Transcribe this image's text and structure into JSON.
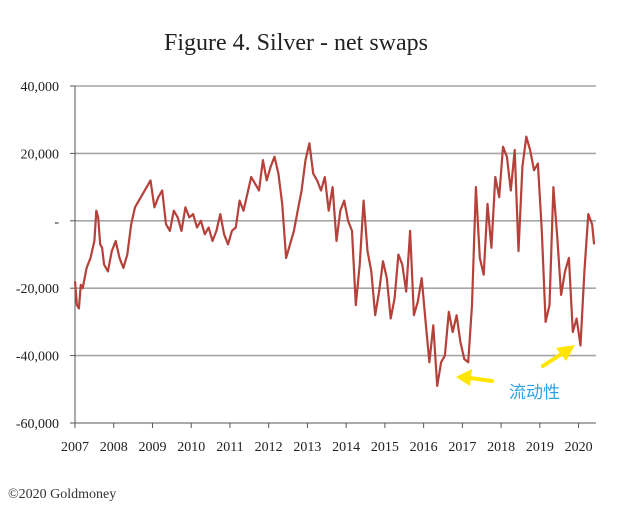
{
  "chart_data": {
    "type": "line",
    "title": "Figure 4. Silver - net swaps",
    "xlabel": "",
    "ylabel": "",
    "ylim": [
      -60000,
      40000
    ],
    "xlim": [
      2007.0,
      2020.45
    ],
    "grid": "horizontal",
    "y_ticks": [
      {
        "value": 40000,
        "label": "40,000"
      },
      {
        "value": 20000,
        "label": "20,000"
      },
      {
        "value": 0,
        "label": "-"
      },
      {
        "value": -20000,
        "label": "-20,000"
      },
      {
        "value": -40000,
        "label": "-40,000"
      },
      {
        "value": -60000,
        "label": "-60,000"
      }
    ],
    "x_ticks": [
      {
        "value": 2007,
        "label": "2007"
      },
      {
        "value": 2008,
        "label": "2008"
      },
      {
        "value": 2009,
        "label": "2009"
      },
      {
        "value": 2010,
        "label": "2010"
      },
      {
        "value": 2011,
        "label": "2011"
      },
      {
        "value": 2012,
        "label": "2012"
      },
      {
        "value": 2013,
        "label": "2013"
      },
      {
        "value": 2014,
        "label": "2014"
      },
      {
        "value": 2015,
        "label": "2015"
      },
      {
        "value": 2016,
        "label": "2016"
      },
      {
        "value": 2017,
        "label": "2017"
      },
      {
        "value": 2018,
        "label": "2018"
      },
      {
        "value": 2019,
        "label": "2019"
      },
      {
        "value": 2020,
        "label": "2020"
      }
    ],
    "series": [
      {
        "color": "#b5413a",
        "x": [
          2007.0,
          2007.05,
          2007.1,
          2007.15,
          2007.2,
          2007.3,
          2007.4,
          2007.5,
          2007.55,
          2007.6,
          2007.65,
          2007.7,
          2007.75,
          2007.85,
          2007.95,
          2008.05,
          2008.15,
          2008.25,
          2008.35,
          2008.45,
          2008.55,
          2008.65,
          2008.75,
          2008.85,
          2008.95,
          2009.05,
          2009.15,
          2009.25,
          2009.35,
          2009.45,
          2009.55,
          2009.65,
          2009.75,
          2009.85,
          2009.95,
          2010.05,
          2010.15,
          2010.25,
          2010.35,
          2010.45,
          2010.55,
          2010.65,
          2010.75,
          2010.85,
          2010.95,
          2011.05,
          2011.15,
          2011.25,
          2011.35,
          2011.45,
          2011.55,
          2011.65,
          2011.75,
          2011.85,
          2011.95,
          2012.05,
          2012.15,
          2012.25,
          2012.35,
          2012.45,
          2012.55,
          2012.65,
          2012.75,
          2012.85,
          2012.95,
          2013.05,
          2013.15,
          2013.25,
          2013.35,
          2013.45,
          2013.55,
          2013.65,
          2013.75,
          2013.85,
          2013.95,
          2014.05,
          2014.15,
          2014.25,
          2014.35,
          2014.45,
          2014.55,
          2014.65,
          2014.75,
          2014.85,
          2014.95,
          2015.05,
          2015.15,
          2015.25,
          2015.35,
          2015.45,
          2015.55,
          2015.65,
          2015.75,
          2015.85,
          2015.95,
          2016.05,
          2016.15,
          2016.25,
          2016.35,
          2016.45,
          2016.55,
          2016.65,
          2016.75,
          2016.85,
          2016.95,
          2017.05,
          2017.15,
          2017.25,
          2017.35,
          2017.45,
          2017.55,
          2017.65,
          2017.75,
          2017.85,
          2017.95,
          2018.05,
          2018.15,
          2018.25,
          2018.35,
          2018.45,
          2018.55,
          2018.65,
          2018.75,
          2018.85,
          2018.95,
          2019.05,
          2019.15,
          2019.25,
          2019.35,
          2019.45,
          2019.55,
          2019.65,
          2019.75,
          2019.85,
          2019.95,
          2020.05,
          2020.15,
          2020.25,
          2020.35,
          2020.4
        ],
        "y": [
          -18000,
          -25000,
          -26000,
          -19000,
          -20000,
          -14000,
          -11000,
          -6000,
          3000,
          1000,
          -7000,
          -8000,
          -13000,
          -15000,
          -9000,
          -6000,
          -11000,
          -14000,
          -10000,
          -1000,
          4000,
          6000,
          8000,
          10000,
          12000,
          4000,
          7000,
          9000,
          -1000,
          -3000,
          3000,
          1000,
          -3000,
          4000,
          1000,
          2000,
          -2000,
          0,
          -4000,
          -2000,
          -6000,
          -3000,
          2000,
          -4000,
          -7000,
          -3000,
          -2000,
          6000,
          3000,
          8000,
          13000,
          11000,
          9000,
          18000,
          12000,
          16000,
          19000,
          14000,
          5000,
          -11000,
          -7000,
          -3000,
          3000,
          9000,
          18000,
          23000,
          14000,
          12000,
          9000,
          13000,
          3000,
          10000,
          -6000,
          3000,
          6000,
          0,
          -3000,
          -25000,
          -13000,
          6000,
          -9000,
          -15000,
          -28000,
          -21000,
          -12000,
          -17000,
          -29000,
          -23000,
          -10000,
          -13000,
          -21000,
          -3000,
          -28000,
          -24000,
          -17000,
          -30000,
          -42000,
          -31000,
          -49000,
          -42000,
          -40000,
          -27000,
          -33000,
          -28000,
          -36000,
          -41000,
          -42000,
          -25000,
          10000,
          -11000,
          -16000,
          5000,
          -8000,
          13000,
          7000,
          22000,
          19000,
          9000,
          21000,
          -9000,
          16000,
          25000,
          21000,
          15000,
          17000,
          -3000,
          -30000,
          -25000,
          10000,
          -5000,
          -22000,
          -15000,
          -11000,
          -33000,
          -29000,
          -37000,
          -15000,
          2000,
          -1000,
          -7000
        ]
      }
    ],
    "annotations": [
      {
        "text": "流动性",
        "color": "#2aa3e6"
      }
    ]
  },
  "footer": {
    "copyright": "©2020 Goldmoney"
  }
}
